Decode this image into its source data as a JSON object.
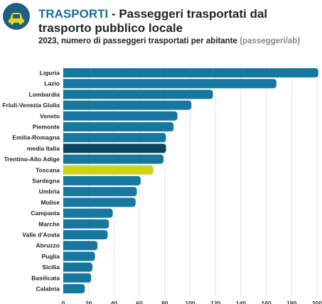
{
  "header": {
    "category": "TRASPORTI",
    "separator": " - ",
    "title": "Passeggeri trasportati dal trasporto pubblico locale",
    "subtitle": "2023, numero di passeggeri trasportati per abitante",
    "unit": "(passeggeri/ab)",
    "logo_icon": "car-icon"
  },
  "colors": {
    "bar": "#16789f",
    "average": "#0d4560",
    "highlight": "#cbd31f",
    "logo_bg": "#1f5f86",
    "logo_icon": "#e3d51c"
  },
  "chart_data": {
    "type": "bar",
    "orientation": "horizontal",
    "title": "Passeggeri trasportati dal trasporto pubblico locale",
    "subtitle": "2023, numero di passeggeri trasportati per abitante",
    "unit": "(passeggeri/ab)",
    "categories": [
      "Liguria",
      "Lazio",
      "Lombardia",
      "Friuli-Venezia Giulia",
      "Veneto",
      "Piemonte",
      "Emilia-Romagna",
      "media Italia",
      "Trentino-Alto Adige",
      "Toscana",
      "Sardegna",
      "Umbria",
      "Molise",
      "Campania",
      "Marche",
      "Valle d'Aosta",
      "Abruzzo",
      "Puglia",
      "Sicilia",
      "Basilicata",
      "Calabria"
    ],
    "values": [
      201,
      168,
      118,
      101,
      90,
      87,
      81,
      81,
      79,
      71,
      61,
      58,
      57,
      39,
      36,
      35,
      27,
      25,
      23,
      22,
      17
    ],
    "average_category": "media Italia",
    "highlight_category": "Toscana",
    "xlim": [
      0,
      200
    ],
    "xticks": [
      0,
      20,
      40,
      60,
      80,
      100,
      120,
      140,
      160,
      180,
      200
    ],
    "grid": true,
    "legend": false
  }
}
